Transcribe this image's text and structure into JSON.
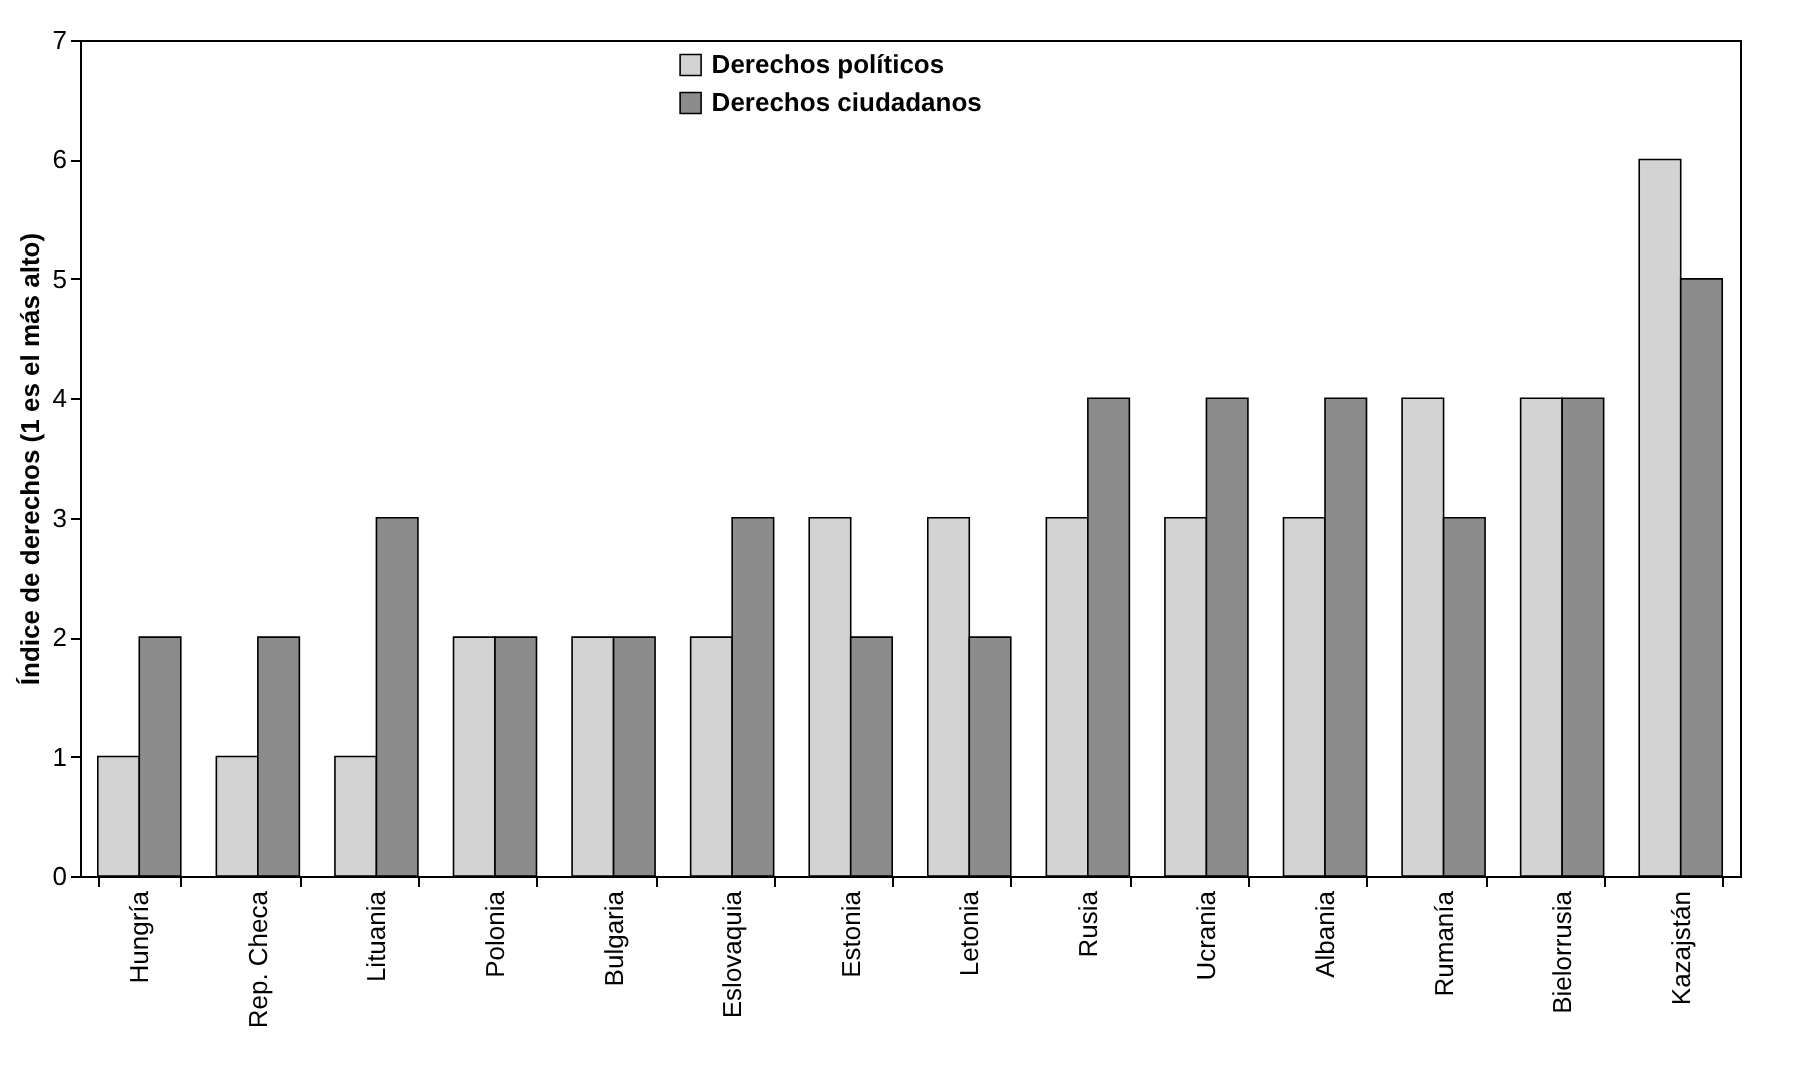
{
  "chart_data": {
    "type": "bar",
    "ylabel": "Índice de derechos (1 es el más alto)",
    "categories": [
      "Hungría",
      "Rep. Checa",
      "Lituania",
      "Polonia",
      "Bulgaria",
      "Eslovaquia",
      "Estonia",
      "Letonia",
      "Rusia",
      "Ucrania",
      "Albania",
      "Rumanía",
      "Bielorrusia",
      "Kazajstán"
    ],
    "series": [
      {
        "name": "Derechos políticos",
        "color": "#d3d3d3",
        "values": [
          1,
          1,
          1,
          2,
          2,
          2,
          3,
          3,
          3,
          3,
          3,
          4,
          4,
          6
        ]
      },
      {
        "name": "Derechos ciudadanos",
        "color": "#8c8c8c",
        "values": [
          2,
          2,
          3,
          2,
          2,
          3,
          2,
          2,
          4,
          4,
          4,
          3,
          4,
          5
        ]
      }
    ],
    "ylim": [
      0,
      7
    ],
    "yticks": [
      0,
      1,
      2,
      3,
      4,
      5,
      6,
      7
    ],
    "grid": false,
    "legend": "top"
  }
}
